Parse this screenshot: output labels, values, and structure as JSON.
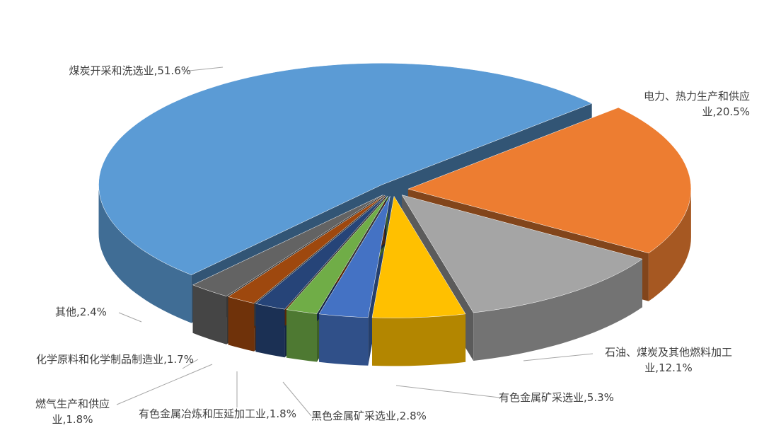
{
  "chart_data": {
    "type": "pie3d",
    "categories": [
      "煤炭开采和洗选业",
      "电力、热力生产和供应业",
      "石油、煤炭及其他燃料加工业",
      "有色金属矿采选业",
      "黑色金属矿采选业",
      "有色金属冶炼和压延加工业",
      "燃气生产和供应业",
      "化学原料和化学制品制造业",
      "其他"
    ],
    "values": [
      51.6,
      20.5,
      12.1,
      5.3,
      2.8,
      1.8,
      1.8,
      1.7,
      2.4
    ],
    "value_labels": [
      "51.6%",
      "20.5%",
      "12.1%",
      "5.3%",
      "2.8%",
      "1.8%",
      "1.8%",
      "1.7%",
      "2.4%"
    ],
    "label_separator": ",",
    "colors": [
      "#5b9bd5",
      "#ed7d31",
      "#a5a5a5",
      "#ffc000",
      "#4472c4",
      "#70ad47",
      "#264478",
      "#9e480e",
      "#636363"
    ]
  }
}
